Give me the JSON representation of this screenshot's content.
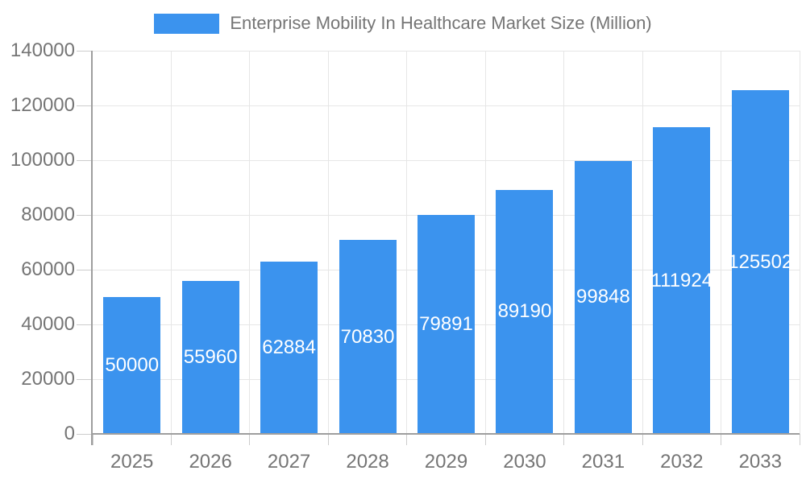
{
  "legend": {
    "label": "Enterprise Mobility In Healthcare Market Size (Million)"
  },
  "chart_data": {
    "type": "bar",
    "title": "Enterprise Mobility In Healthcare Market Size (Million)",
    "categories": [
      "2025",
      "2026",
      "2027",
      "2028",
      "2029",
      "2030",
      "2031",
      "2032",
      "2033"
    ],
    "values": [
      50000,
      55960,
      62884,
      70830,
      79891,
      89190,
      99848,
      111924,
      125502
    ],
    "xlabel": "",
    "ylabel": "",
    "ylim": [
      0,
      140000
    ],
    "yticks": [
      0,
      20000,
      40000,
      60000,
      80000,
      100000,
      120000,
      140000
    ],
    "grid": true,
    "legend_position": "top",
    "value_label_position": "inside-center",
    "colors": {
      "bar": "#3b93ee",
      "axis": "#9e9e9e",
      "gridline": "#e6e6e6",
      "tick": "#cccccc",
      "label_text": "#757575",
      "value_text": "#ffffff",
      "background": "#ffffff"
    }
  }
}
